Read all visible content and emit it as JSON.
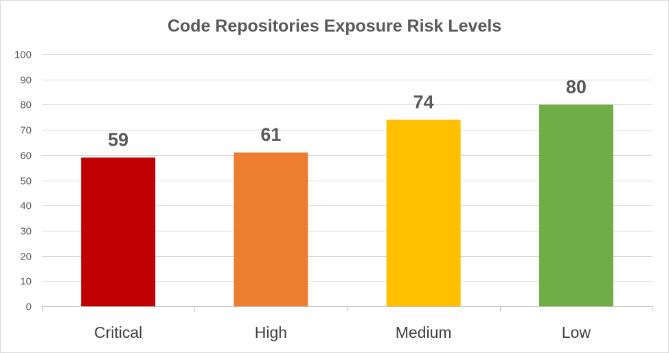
{
  "chart_data": {
    "type": "bar",
    "title": "Code Repositories Exposure Risk Levels",
    "categories": [
      "Critical",
      "High",
      "Medium",
      "Low"
    ],
    "values": [
      59,
      61,
      74,
      80
    ],
    "colors": [
      "#c00000",
      "#ed7d31",
      "#ffc000",
      "#70ad47"
    ],
    "ylim": [
      0,
      100
    ],
    "yticks": [
      0,
      10,
      20,
      30,
      40,
      50,
      60,
      70,
      80,
      90,
      100
    ],
    "grid": true,
    "xlabel": "",
    "ylabel": ""
  }
}
